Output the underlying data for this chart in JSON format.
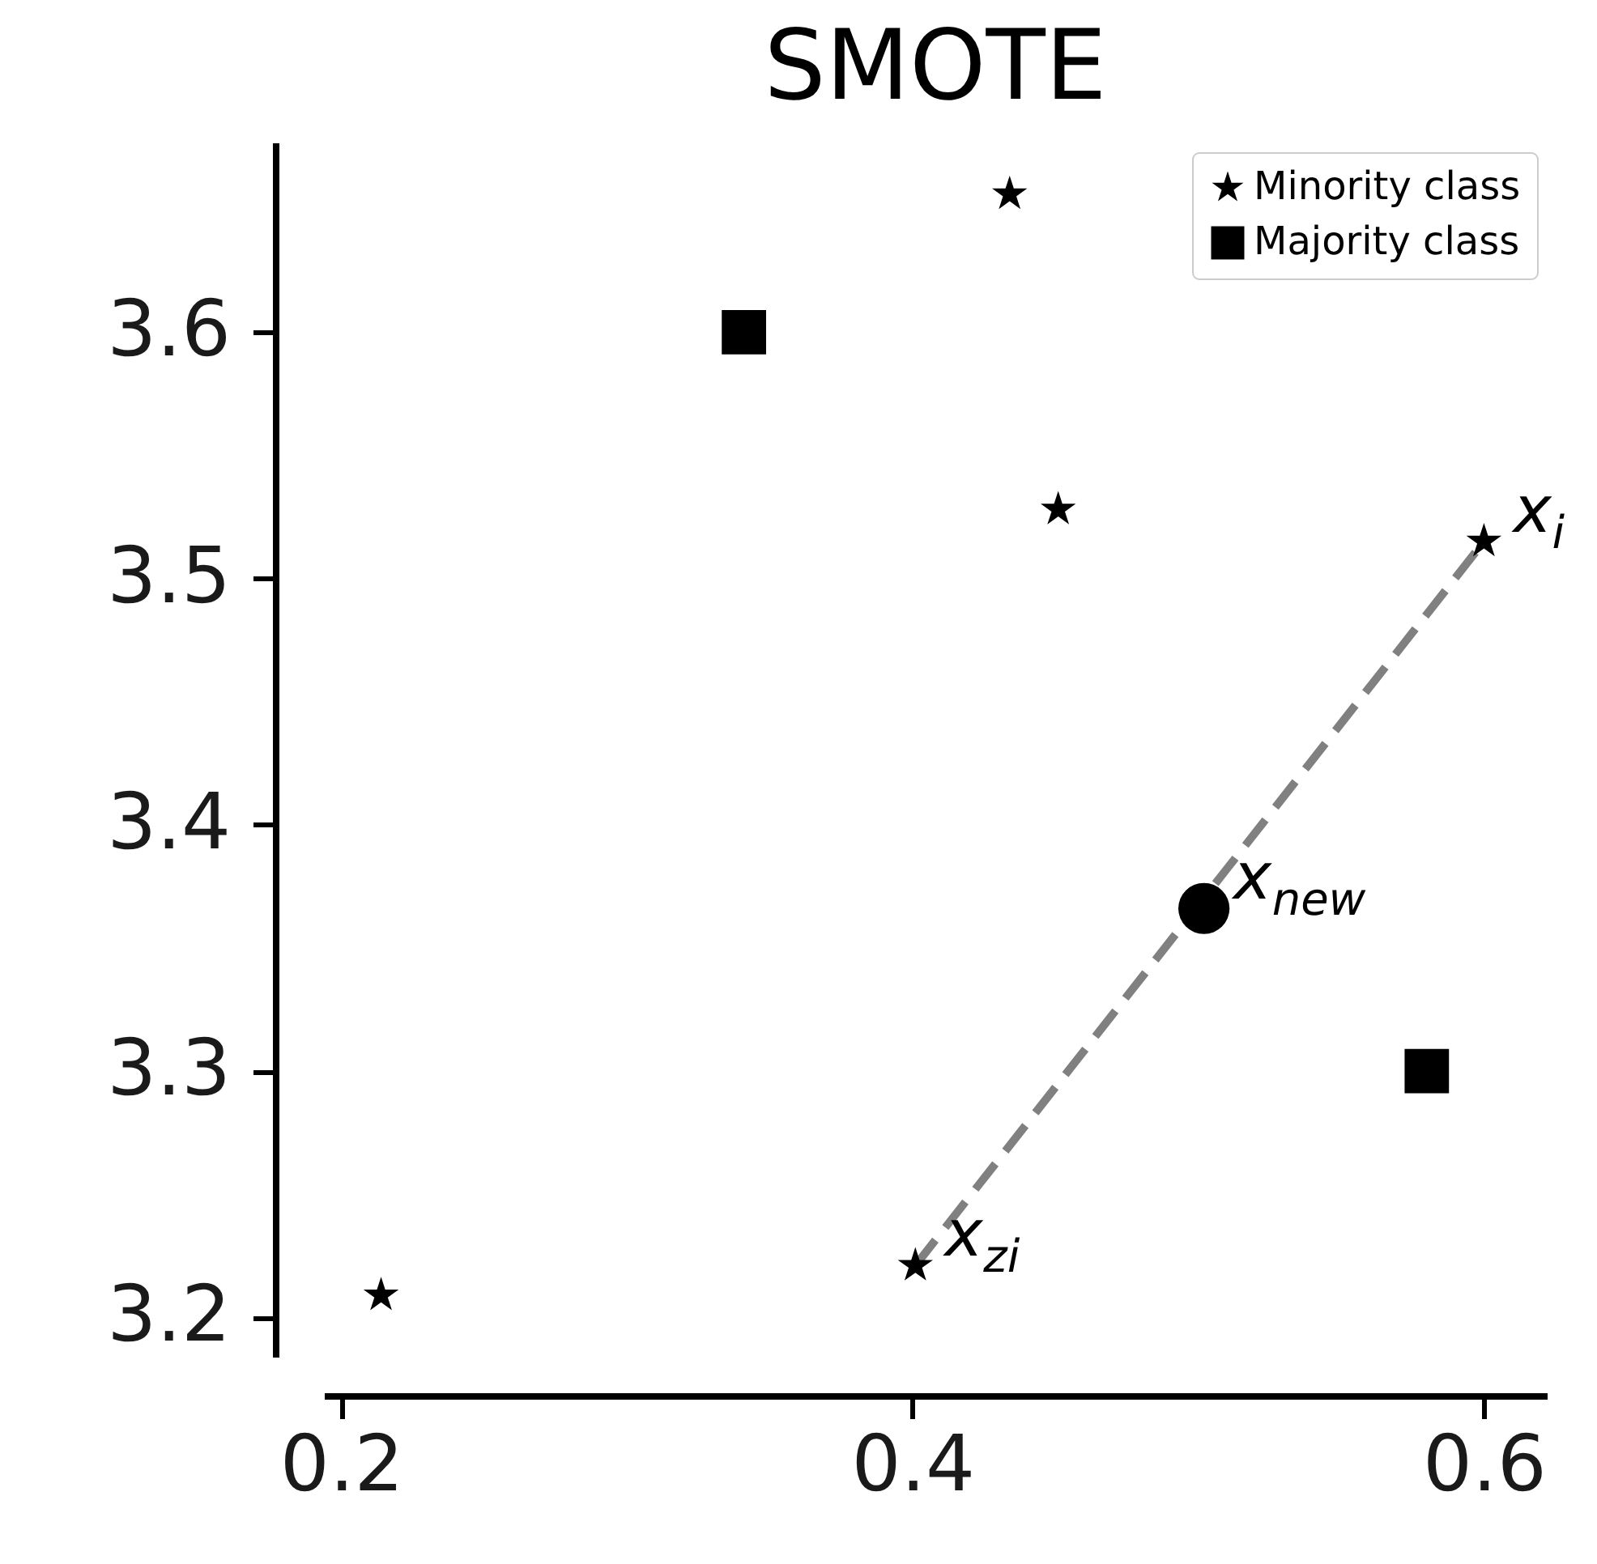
{
  "chart_data": {
    "type": "scatter",
    "title": "SMOTE",
    "xlim": [
      0.194,
      0.622
    ],
    "ylim": [
      3.184,
      3.677
    ],
    "xticks": [
      0.2,
      0.4,
      0.6
    ],
    "yticks": [
      3.2,
      3.3,
      3.4,
      3.5,
      3.6
    ],
    "grid": false,
    "legend": "top right",
    "series": [
      {
        "type": "line",
        "color": "#808080",
        "line_style": "dashed",
        "x": [
          0.401,
          0.6
        ],
        "values": [
          3.221,
          3.515
        ]
      },
      {
        "name": "Minority class",
        "color": "#000000",
        "marker": "star",
        "x": [
          0.214,
          0.401,
          0.451,
          0.6,
          0.434
        ],
        "values": [
          3.209,
          3.221,
          3.528,
          3.515,
          3.656
        ]
      },
      {
        "name": "Majority class",
        "color": "#000000",
        "marker": "square",
        "x": [
          0.341,
          0.58
        ],
        "values": [
          3.6,
          3.3
        ]
      },
      {
        "color": "#000000",
        "marker": "circle",
        "x": [
          0.502
        ],
        "values": [
          3.366
        ]
      }
    ],
    "annotations": [
      {
        "text": "x$_{i}$",
        "x": 0.6,
        "y": 3.515
      },
      {
        "text": "x$_{new}$",
        "x": 0.502,
        "y": 3.366
      },
      {
        "text": "x$_{zi}$",
        "x": 0.401,
        "y": 3.221
      }
    ]
  }
}
